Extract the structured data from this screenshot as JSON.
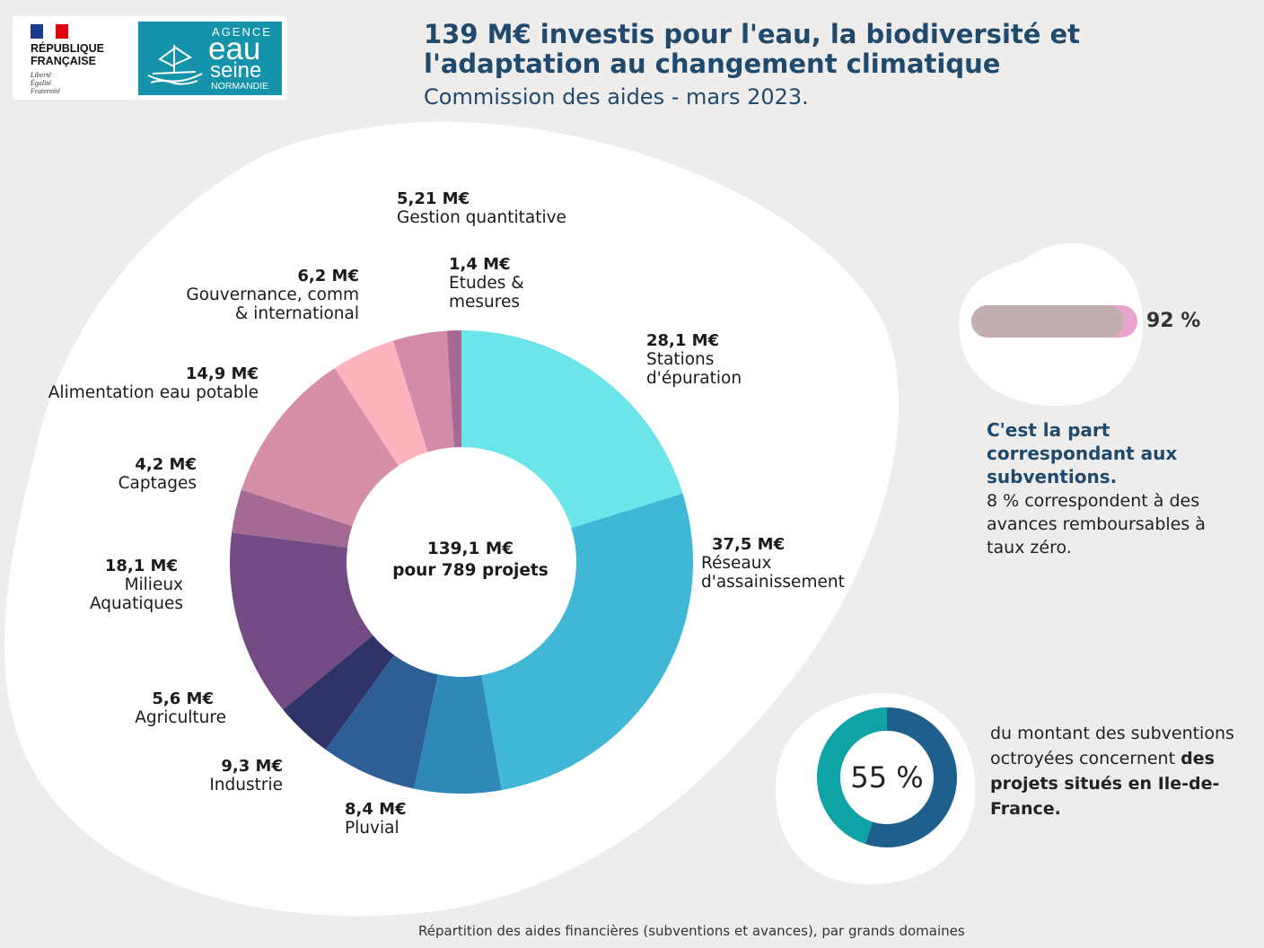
{
  "header": {
    "title": "139 M€ investis pour l'eau, la biodiversité et l'adaptation au changement climatique",
    "subtitle": "Commission des aides - mars 2023."
  },
  "logos": {
    "republique": "RÉPUBLIQUE\nFRANÇAISE",
    "motto": "Liberté\nÉgalité\nFraternité",
    "agency_top": "AGENCE",
    "agency_eau": "eau",
    "agency_seine": "seine",
    "agency_normandie": "NORMANDIE"
  },
  "chart_data": {
    "type": "donut",
    "unit": "M€",
    "total_label": "139,1 M€\npour 789 projets",
    "start": "top, clockwise",
    "segments": [
      {
        "label": "Stations\nd'épuration",
        "value": 28.1,
        "value_text": "28,1 M€",
        "color": "#6be4ea"
      },
      {
        "label": "Réseaux\nd'assainissement",
        "value": 37.5,
        "value_text": "37,5 M€",
        "color": "#41b7d6"
      },
      {
        "label": "Pluvial",
        "value": 8.4,
        "value_text": "8,4 M€",
        "color": "#2e88b8"
      },
      {
        "label": "Industrie",
        "value": 9.3,
        "value_text": "9,3 M€",
        "color": "#2d5f96"
      },
      {
        "label": "Agriculture",
        "value": 5.6,
        "value_text": "5,6 M€",
        "color": "#2f3468"
      },
      {
        "label": "Milieux\nAquatiques",
        "value": 18.1,
        "value_text": "18,1 M€",
        "color": "#734c85"
      },
      {
        "label": "Captages",
        "value": 4.2,
        "value_text": "4,2 M€",
        "color": "#a56a93"
      },
      {
        "label": "Alimentation eau potable",
        "value": 14.9,
        "value_text": "14,9 M€",
        "color": "#d68fa9"
      },
      {
        "label": "Gouvernance, comm\n& international",
        "value": 6.2,
        "value_text": "6,2 M€",
        "color": "#feb3bd"
      },
      {
        "label": "Gestion quantitative",
        "value": 5.21,
        "value_text": "5,21 M€",
        "color": "#d28ba8"
      },
      {
        "label": "Etudes &\nmesures",
        "value": 1.4,
        "value_text": "1,4 M€",
        "color": "#a56a93"
      }
    ]
  },
  "subsidy_share": {
    "percent": 92,
    "percent_text": "92 %",
    "headline": "C'est la part correspondant aux subventions.",
    "note": "8 % correspondent à des avances remboursables à taux zéro.",
    "fill_color": "#c2aeae",
    "track_color": "#e8a3cf"
  },
  "idf_share": {
    "percent": 55,
    "percent_text": "55 %",
    "text_plain": "du montant des subventions octroyées concernent ",
    "text_bold": "des projets situés en Ile-de-France.",
    "ring_color": "#1f5f8b",
    "rest_color": "#0fa3a6"
  },
  "footer": {
    "source": "Répartition des aides financières (subventions et avances), par grands domaines"
  }
}
